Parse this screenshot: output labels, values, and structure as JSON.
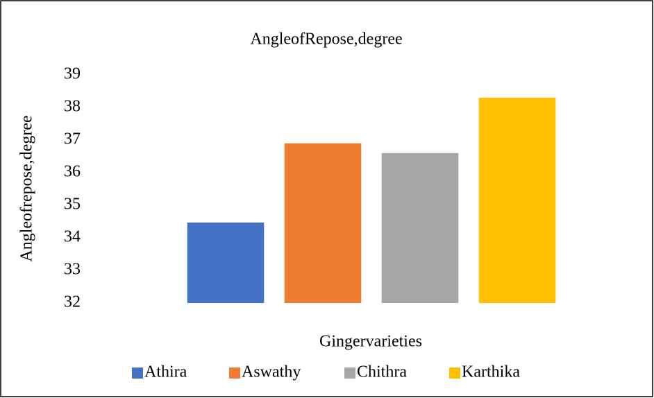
{
  "chart_data": {
    "type": "bar",
    "title": "AngleofRepose,degree",
    "xlabel": "Gingervarieties",
    "ylabel": "Angleofrepose,degree",
    "categories": [
      null
    ],
    "series": [
      {
        "name": "Athira",
        "color": "#4472c4",
        "values": [
          34.47
        ]
      },
      {
        "name": "Aswathy",
        "color": "#ed7d31",
        "values": [
          36.9
        ]
      },
      {
        "name": "Chithra",
        "color": "#a5a5a5",
        "values": [
          36.6
        ]
      },
      {
        "name": "Karthika",
        "color": "#ffc000",
        "values": [
          38.3
        ]
      }
    ],
    "ylim": [
      32,
      39
    ],
    "yticks": [
      32,
      33,
      34,
      35,
      36,
      37,
      38,
      39
    ],
    "grid": false,
    "legend": "bottom"
  }
}
